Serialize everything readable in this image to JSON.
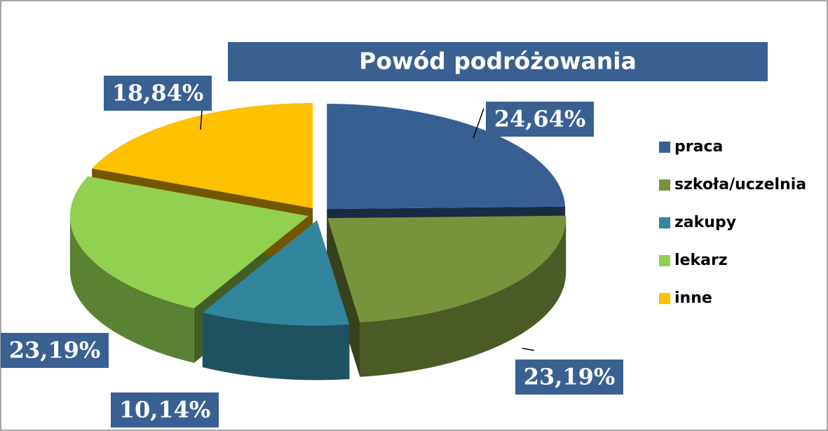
{
  "chart_data": {
    "type": "pie3d",
    "title": "Powód podróżowania",
    "categories": [
      "praca",
      "szkoła/uczelnia",
      "zakupy",
      "lekarz",
      "inne"
    ],
    "values": [
      24.64,
      23.19,
      10.14,
      23.19,
      18.84
    ],
    "value_labels": [
      "24,64%",
      "23,19%",
      "10,14%",
      "23,19%",
      "18,84%"
    ],
    "colors": [
      "#375f92",
      "#77933c",
      "#31859c",
      "#92d050",
      "#ffc000"
    ],
    "legend": "right"
  }
}
